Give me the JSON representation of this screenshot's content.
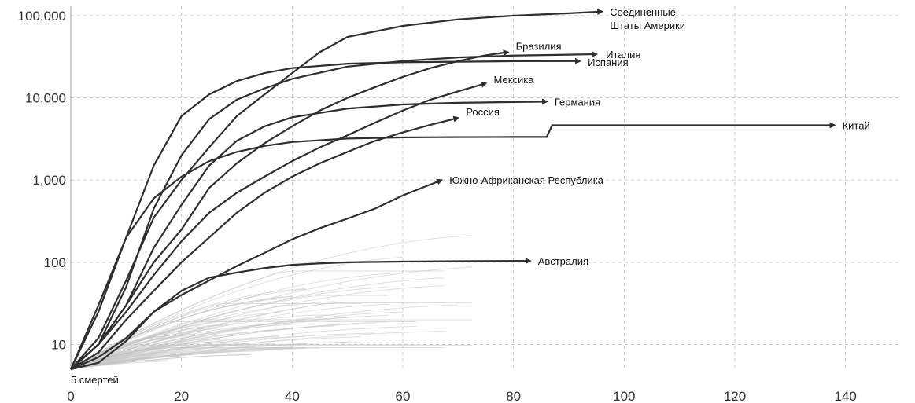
{
  "chart_data": {
    "type": "line",
    "title": "",
    "xlabel": "",
    "ylabel": "",
    "y_scale": "log",
    "xlim": [
      0,
      150
    ],
    "ylim": [
      5,
      130000
    ],
    "grid": true,
    "x_ticks": [
      {
        "value": 0,
        "label": "0"
      },
      {
        "value": 20,
        "label": "20"
      },
      {
        "value": 40,
        "label": "40"
      },
      {
        "value": 60,
        "label": "60"
      },
      {
        "value": 80,
        "label": "80"
      },
      {
        "value": 100,
        "label": "100"
      },
      {
        "value": 120,
        "label": "120"
      },
      {
        "value": 140,
        "label": "140"
      }
    ],
    "y_ticks": [
      {
        "value": 10,
        "label": "10"
      },
      {
        "value": 100,
        "label": "100"
      },
      {
        "value": 1000,
        "label": "1,000"
      },
      {
        "value": 10000,
        "label": "10,000"
      },
      {
        "value": 100000,
        "label": "100,000"
      }
    ],
    "start_annotation": "5 смертей",
    "highlighted_series": [
      {
        "name": "Соединенные Штаты Америки",
        "label_lines": [
          "Соединенные",
          "Штаты Америки"
        ],
        "x": [
          0,
          5,
          10,
          15,
          20,
          25,
          30,
          35,
          40,
          45,
          50,
          60,
          70,
          80,
          90,
          96
        ],
        "y": [
          5,
          12,
          60,
          350,
          1000,
          2500,
          6000,
          11000,
          20000,
          36000,
          55000,
          75000,
          90000,
          100000,
          107000,
          112000
        ]
      },
      {
        "name": "Бразилия",
        "label_lines": [
          "Бразилия"
        ],
        "x": [
          0,
          5,
          10,
          15,
          20,
          25,
          30,
          35,
          40,
          45,
          50,
          55,
          60,
          65,
          70,
          75,
          79
        ],
        "y": [
          5,
          10,
          30,
          100,
          250,
          800,
          1600,
          2800,
          4500,
          7000,
          10000,
          13500,
          18000,
          23000,
          28000,
          33000,
          36000
        ]
      },
      {
        "name": "Испания",
        "label_lines": [
          "Испания"
        ],
        "x": [
          0,
          5,
          10,
          15,
          20,
          25,
          30,
          35,
          40,
          50,
          60,
          70,
          80,
          92
        ],
        "y": [
          5,
          25,
          200,
          1500,
          6000,
          11000,
          16000,
          20000,
          23000,
          26000,
          27100,
          27500,
          27900,
          28000
        ]
      },
      {
        "name": "Италия",
        "label_lines": [
          "Италия"
        ],
        "x": [
          0,
          5,
          10,
          15,
          20,
          25,
          30,
          35,
          40,
          50,
          60,
          70,
          80,
          90,
          95
        ],
        "y": [
          5,
          10,
          50,
          450,
          2000,
          5500,
          9500,
          13000,
          17000,
          24000,
          28000,
          31000,
          32700,
          33500,
          34000
        ]
      },
      {
        "name": "Мексика",
        "label_lines": [
          "Мексика"
        ],
        "x": [
          0,
          5,
          10,
          15,
          20,
          25,
          30,
          35,
          40,
          45,
          50,
          55,
          60,
          65,
          70,
          75
        ],
        "y": [
          5,
          10,
          25,
          70,
          180,
          400,
          700,
          1100,
          1700,
          2500,
          3500,
          5000,
          7000,
          9500,
          12000,
          15000
        ]
      },
      {
        "name": "Германия",
        "label_lines": [
          "Германия"
        ],
        "x": [
          0,
          5,
          10,
          15,
          20,
          25,
          30,
          35,
          40,
          50,
          60,
          70,
          80,
          86
        ],
        "y": [
          5,
          10,
          30,
          150,
          500,
          1500,
          3000,
          4500,
          5800,
          7400,
          8300,
          8700,
          8900,
          9000
        ]
      },
      {
        "name": "Россия",
        "label_lines": [
          "Россия"
        ],
        "x": [
          0,
          5,
          10,
          15,
          20,
          25,
          30,
          35,
          40,
          45,
          50,
          55,
          60,
          65,
          70
        ],
        "y": [
          5,
          8,
          20,
          45,
          100,
          200,
          400,
          700,
          1100,
          1600,
          2200,
          3000,
          3800,
          4700,
          5700
        ]
      },
      {
        "name": "Китай",
        "label_lines": [
          "Китай"
        ],
        "x": [
          0,
          5,
          10,
          15,
          20,
          25,
          30,
          35,
          40,
          50,
          60,
          70,
          80,
          86,
          87,
          100,
          120,
          138
        ],
        "y": [
          5,
          30,
          200,
          600,
          1100,
          1700,
          2200,
          2600,
          2900,
          3200,
          3300,
          3330,
          3340,
          3340,
          4640,
          4640,
          4640,
          4640
        ]
      },
      {
        "name": "Южно-Африканская Республика",
        "label_lines": [
          "Южно-Африканская Республика"
        ],
        "x": [
          0,
          5,
          10,
          15,
          20,
          25,
          30,
          35,
          40,
          45,
          50,
          55,
          60,
          67
        ],
        "y": [
          5,
          7,
          12,
          25,
          40,
          60,
          90,
          130,
          190,
          260,
          340,
          450,
          650,
          1000
        ]
      },
      {
        "name": "Австралия",
        "label_lines": [
          "Австралия"
        ],
        "x": [
          0,
          5,
          10,
          15,
          20,
          25,
          30,
          35,
          40,
          45,
          50,
          60,
          70,
          83
        ],
        "y": [
          5,
          6,
          11,
          25,
          45,
          65,
          75,
          85,
          93,
          97,
          100,
          102,
          103,
          104
        ]
      }
    ],
    "colors": {
      "highlight": "#2e2e2e",
      "background_series": "#c4c4c4",
      "grid": "#c8c8c8",
      "axis": "#999999",
      "text": "#111111"
    }
  }
}
